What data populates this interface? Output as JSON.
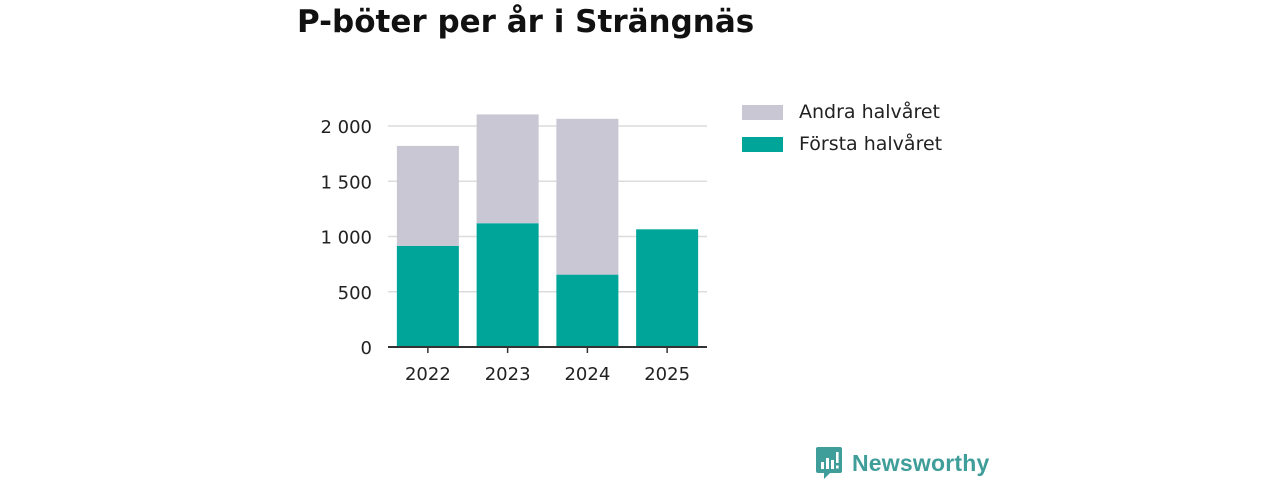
{
  "chart_data": {
    "type": "bar",
    "stacked": true,
    "title": "P-böter per år i Strängnäs",
    "xlabel": "",
    "ylabel": "",
    "categories": [
      "2022",
      "2023",
      "2024",
      "2025"
    ],
    "series": [
      {
        "name": "Första halvåret",
        "color": "#00a59a",
        "values": [
          915,
          1120,
          655,
          1065
        ]
      },
      {
        "name": "Andra halvåret",
        "color": "#c8c7d3",
        "values": [
          905,
          985,
          1410,
          0
        ]
      }
    ],
    "ylim": [
      0,
      2000
    ],
    "yticks": [
      0,
      500,
      1000,
      1500,
      2000
    ],
    "ytick_labels": [
      "0",
      "500",
      "1 000",
      "1 500",
      "2 000"
    ],
    "grid": true,
    "legend": {
      "placement": "right",
      "items": [
        "Andra halvåret",
        "Första halvåret"
      ]
    }
  },
  "brand": {
    "name": "Newsworthy",
    "color": "#3f9e99",
    "icon": "bar-chart-icon"
  }
}
